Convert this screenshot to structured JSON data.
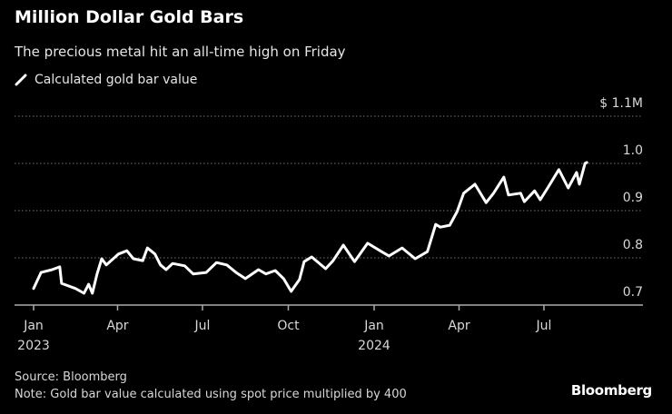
{
  "title": "Million Dollar Gold Bars",
  "subtitle": "The precious metal hit an all-time high on Friday",
  "legend_label": "Calculated gold bar value",
  "source": "Source: Bloomberg",
  "note": "Note: Gold bar value calculated using spot price multiplied by 400",
  "logo": "Bloomberg",
  "colors": {
    "background": "#000000",
    "line": "#ffffff",
    "grid": "#777777"
  },
  "chart_data": {
    "type": "line",
    "title": "Million Dollar Gold Bars",
    "ylabel": "",
    "xlabel": "",
    "ylim": [
      0.7,
      1.1
    ],
    "xlim": [
      "2023-01-01",
      "2024-08-31"
    ],
    "grid": true,
    "legend": "top-left",
    "y_ticks": [
      {
        "v": 0.7,
        "label": "0.7"
      },
      {
        "v": 0.8,
        "label": "0.8"
      },
      {
        "v": 0.9,
        "label": "0.9"
      },
      {
        "v": 1.0,
        "label": "1.0"
      },
      {
        "v": 1.1,
        "label": "$ 1.1M"
      }
    ],
    "x_ticks": [
      {
        "d": "2023-01-01",
        "label": "Jan",
        "label2": "2023"
      },
      {
        "d": "2023-04-01",
        "label": "Apr",
        "label2": ""
      },
      {
        "d": "2023-07-01",
        "label": "Jul",
        "label2": ""
      },
      {
        "d": "2023-10-01",
        "label": "Oct",
        "label2": ""
      },
      {
        "d": "2024-01-01",
        "label": "Jan",
        "label2": "2024"
      },
      {
        "d": "2024-04-01",
        "label": "Apr",
        "label2": ""
      },
      {
        "d": "2024-07-01",
        "label": "Jul",
        "label2": ""
      }
    ],
    "series": [
      {
        "name": "Calculated gold bar value",
        "points": [
          [
            "2023-01-01",
            0.735
          ],
          [
            "2023-01-09",
            0.769
          ],
          [
            "2023-01-21",
            0.775
          ],
          [
            "2023-01-29",
            0.781
          ],
          [
            "2023-01-31",
            0.746
          ],
          [
            "2023-02-15",
            0.735
          ],
          [
            "2023-02-24",
            0.725
          ],
          [
            "2023-03-01",
            0.744
          ],
          [
            "2023-03-05",
            0.725
          ],
          [
            "2023-03-10",
            0.766
          ],
          [
            "2023-03-15",
            0.798
          ],
          [
            "2023-03-20",
            0.785
          ],
          [
            "2023-04-02",
            0.808
          ],
          [
            "2023-04-11",
            0.815
          ],
          [
            "2023-04-18",
            0.798
          ],
          [
            "2023-04-28",
            0.794
          ],
          [
            "2023-05-03",
            0.821
          ],
          [
            "2023-05-11",
            0.808
          ],
          [
            "2023-05-17",
            0.785
          ],
          [
            "2023-05-23",
            0.775
          ],
          [
            "2023-05-30",
            0.788
          ],
          [
            "2023-06-12",
            0.783
          ],
          [
            "2023-06-21",
            0.766
          ],
          [
            "2023-07-05",
            0.769
          ],
          [
            "2023-07-16",
            0.79
          ],
          [
            "2023-07-27",
            0.785
          ],
          [
            "2023-08-06",
            0.769
          ],
          [
            "2023-08-16",
            0.756
          ],
          [
            "2023-08-30",
            0.775
          ],
          [
            "2023-09-07",
            0.766
          ],
          [
            "2023-09-17",
            0.773
          ],
          [
            "2023-09-26",
            0.756
          ],
          [
            "2023-10-04",
            0.729
          ],
          [
            "2023-10-13",
            0.754
          ],
          [
            "2023-10-18",
            0.792
          ],
          [
            "2023-10-26",
            0.802
          ],
          [
            "2023-11-10",
            0.777
          ],
          [
            "2023-11-18",
            0.794
          ],
          [
            "2023-11-29",
            0.827
          ],
          [
            "2023-12-11",
            0.792
          ],
          [
            "2023-12-25",
            0.831
          ],
          [
            "2024-01-09",
            0.813
          ],
          [
            "2024-01-17",
            0.804
          ],
          [
            "2024-01-31",
            0.821
          ],
          [
            "2024-02-14",
            0.798
          ],
          [
            "2024-02-27",
            0.813
          ],
          [
            "2024-03-07",
            0.871
          ],
          [
            "2024-03-12",
            0.865
          ],
          [
            "2024-03-22",
            0.869
          ],
          [
            "2024-03-30",
            0.898
          ],
          [
            "2024-04-06",
            0.937
          ],
          [
            "2024-04-18",
            0.956
          ],
          [
            "2024-04-30",
            0.917
          ],
          [
            "2024-05-08",
            0.937
          ],
          [
            "2024-05-19",
            0.971
          ],
          [
            "2024-05-24",
            0.933
          ],
          [
            "2024-06-06",
            0.937
          ],
          [
            "2024-06-10",
            0.919
          ],
          [
            "2024-06-21",
            0.942
          ],
          [
            "2024-06-27",
            0.923
          ],
          [
            "2024-07-05",
            0.948
          ],
          [
            "2024-07-17",
            0.987
          ],
          [
            "2024-07-27",
            0.948
          ],
          [
            "2024-08-05",
            0.981
          ],
          [
            "2024-08-08",
            0.956
          ],
          [
            "2024-08-14",
            1.0
          ],
          [
            "2024-08-16",
            1.002
          ]
        ]
      }
    ]
  }
}
